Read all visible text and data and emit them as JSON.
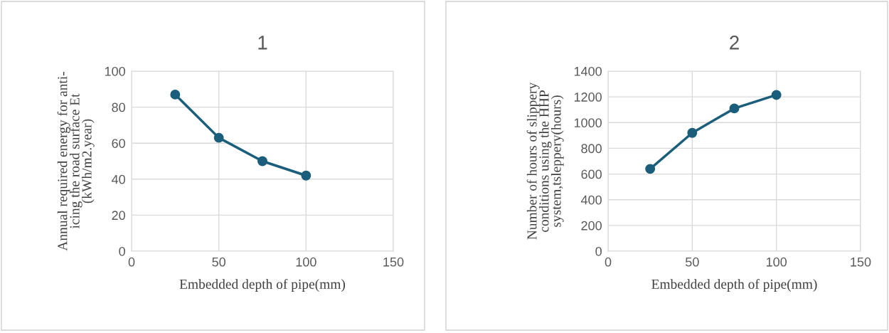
{
  "chart_data": [
    {
      "type": "line",
      "title": "1",
      "xlabel": "Embedded depth of pipe(mm)",
      "ylabel": "Annual required energy for anti-\nicing the road surface Et\n(kWh/m2.year)",
      "x": [
        25,
        50,
        75,
        100
      ],
      "series": [
        {
          "color": "#1b5e7b",
          "values": [
            87,
            63,
            50,
            42
          ]
        }
      ],
      "xlim": [
        0,
        150
      ],
      "xticks": [
        0,
        50,
        100,
        150
      ],
      "ylim": [
        0,
        100
      ],
      "yticks": [
        0,
        20,
        40,
        60,
        80,
        100
      ],
      "grid": true,
      "marker": "circle",
      "line_style": "solid"
    },
    {
      "type": "line",
      "title": "2",
      "xlabel": "Embedded depth of pipe(mm)",
      "ylabel": "Number of hours of slippery\nconditions using the HHP\nsystem,tsleppery(hours)",
      "x": [
        25,
        50,
        75,
        100
      ],
      "series": [
        {
          "color": "#1b5e7b",
          "values": [
            640,
            920,
            1110,
            1215
          ]
        }
      ],
      "xlim": [
        0,
        150
      ],
      "xticks": [
        0,
        50,
        100,
        150
      ],
      "ylim": [
        0,
        1400
      ],
      "yticks": [
        0,
        200,
        400,
        600,
        800,
        1000,
        1200,
        1400
      ],
      "grid": true,
      "marker": "circle",
      "line_style": "solid"
    }
  ]
}
